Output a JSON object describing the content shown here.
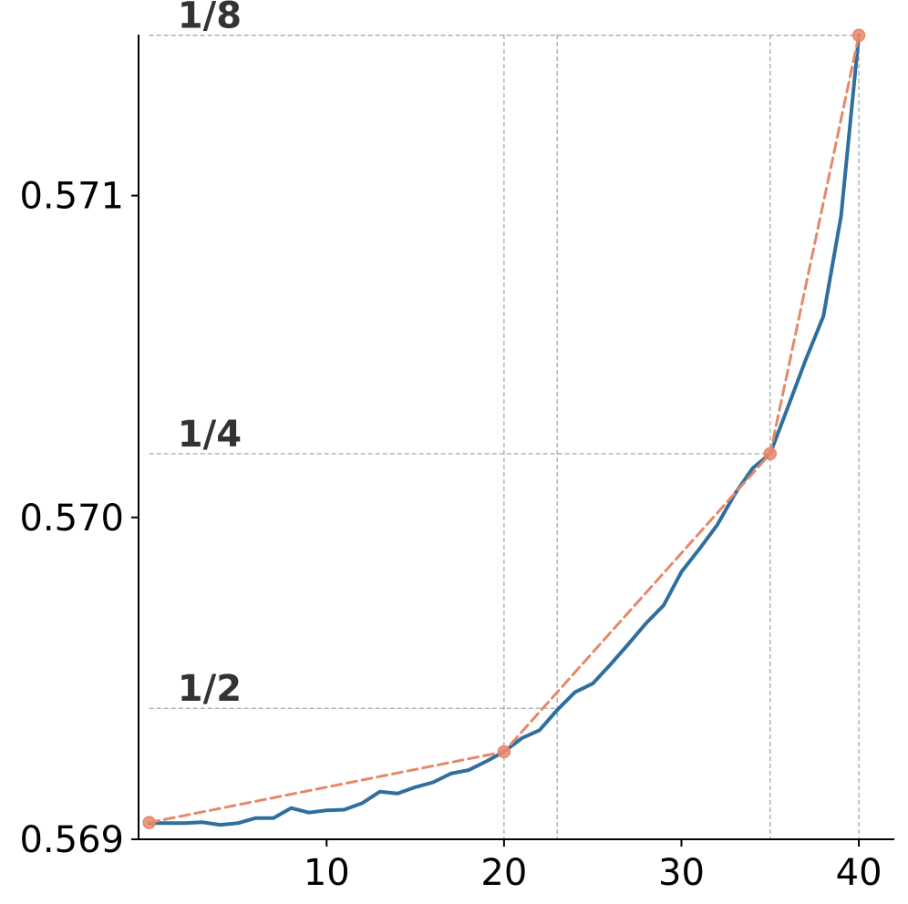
{
  "chart_data": {
    "type": "line",
    "title": "",
    "xlabel": "",
    "ylabel": "",
    "xlim": [
      -0.6,
      42
    ],
    "ylim": [
      0.569,
      0.5715
    ],
    "x_ticks": [
      10,
      20,
      30,
      40
    ],
    "x_tick_labels": [
      "10",
      "20",
      "30",
      "40"
    ],
    "y_ticks": [
      0.569,
      0.57,
      0.571
    ],
    "y_tick_labels": [
      "0.569",
      "0.570",
      "0.571"
    ],
    "grid": false,
    "series": [
      {
        "color": "#2e6f9e",
        "style": "solid",
        "x": [
          0,
          1,
          2,
          3,
          4,
          5,
          6,
          7,
          8,
          9,
          10,
          11,
          12,
          13,
          14,
          15,
          16,
          17,
          18,
          19,
          20,
          21,
          22,
          23,
          24,
          25,
          26,
          27,
          28,
          29,
          30,
          31,
          32,
          33,
          34,
          35,
          36,
          37,
          38,
          39,
          40
        ],
        "values": [
          0.56905,
          0.56905,
          0.56905,
          0.569053,
          0.569045,
          0.56905,
          0.569066,
          0.569066,
          0.569097,
          0.569083,
          0.56909,
          0.569092,
          0.569112,
          0.569148,
          0.569142,
          0.569162,
          0.569177,
          0.569204,
          0.569215,
          0.569242,
          0.569272,
          0.569314,
          0.569339,
          0.569402,
          0.569457,
          0.569484,
          0.569543,
          0.569606,
          0.569671,
          0.569727,
          0.569831,
          0.569901,
          0.569975,
          0.570072,
          0.570152,
          0.570198,
          0.570342,
          0.570489,
          0.570625,
          0.570937,
          0.571498
        ]
      },
      {
        "color": "#e8876a",
        "style": "dashed",
        "markers": true,
        "x": [
          0,
          20,
          35,
          40
        ],
        "values": [
          0.569052,
          0.569272,
          0.570198,
          0.571498
        ]
      }
    ],
    "reference_lines": {
      "horizontal": [
        {
          "y": 0.571498,
          "label": "1/8",
          "x_end": 40
        },
        {
          "y": 0.570198,
          "label": "1/4",
          "x_end": 35
        },
        {
          "y": 0.569407,
          "label": "1/2",
          "x_end": 23
        }
      ],
      "vertical": [
        20,
        23,
        35,
        40
      ]
    },
    "colors": {
      "line": "#2e6f9e",
      "fit": "#e8876a",
      "reference": "#a8a8a8",
      "annotation": "#333333"
    }
  }
}
